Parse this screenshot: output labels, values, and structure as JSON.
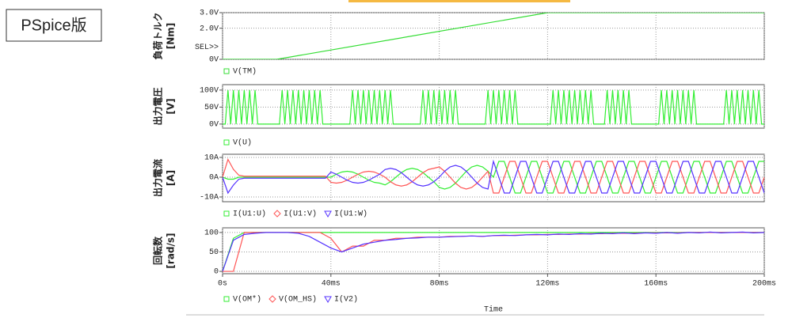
{
  "title": "PSpice版",
  "chart_data": [
    {
      "type": "line",
      "ylabel": "負荷トルク",
      "yunit": "[Nm]",
      "annotation": "SEL>>",
      "xlim": [
        0,
        200
      ],
      "ylim": [
        0,
        3
      ],
      "yticks": [
        {
          "value": 0,
          "label": "0V"
        },
        {
          "value": 2,
          "label": "2.0V"
        },
        {
          "value": 3,
          "label": "3.0V"
        }
      ],
      "x": [
        0,
        20,
        120,
        200
      ],
      "series": [
        {
          "name": "V(TM)",
          "color": "#33dd33",
          "marker": "square",
          "values": [
            0,
            0,
            3,
            3
          ]
        }
      ]
    },
    {
      "type": "line",
      "ylabel": "出力電圧",
      "yunit": "[V]",
      "xlim": [
        0,
        200
      ],
      "ylim": [
        -12,
        116
      ],
      "yticks": [
        {
          "value": 0,
          "label": "0V"
        },
        {
          "value": 50,
          "label": "50V"
        },
        {
          "value": 100,
          "label": "100V"
        }
      ],
      "x": [
        0,
        1,
        2,
        3,
        4,
        5,
        6,
        7,
        8,
        9,
        10,
        11,
        12,
        13,
        14,
        15,
        16,
        17,
        18,
        19,
        20,
        21,
        22,
        23,
        24,
        25,
        26,
        27,
        28,
        29,
        30,
        31,
        32,
        33,
        34,
        35,
        36,
        37,
        38,
        39,
        40,
        41,
        42,
        43,
        44,
        45,
        46,
        47,
        48,
        49,
        50,
        51,
        52,
        53,
        54,
        55,
        56,
        57,
        58,
        59,
        60,
        61,
        62,
        63,
        64,
        65,
        66,
        67,
        68,
        69,
        70,
        71,
        72,
        73,
        74,
        75,
        76,
        77,
        78,
        79,
        80,
        81,
        82,
        83,
        84,
        85,
        86,
        87,
        88,
        89,
        90,
        91,
        92,
        93,
        94,
        95,
        96,
        97,
        98,
        99,
        100,
        101,
        102,
        103,
        104,
        105,
        106,
        107,
        108,
        109,
        110,
        111,
        112,
        113,
        114,
        115,
        116,
        117,
        118,
        119,
        120,
        121,
        122,
        123,
        124,
        125,
        126,
        127,
        128,
        129,
        130,
        131,
        132,
        133,
        134,
        135,
        136,
        137,
        138,
        139,
        140,
        141,
        142,
        143,
        144,
        145,
        146,
        147,
        148,
        149,
        150,
        151,
        152,
        153,
        154,
        155,
        156,
        157,
        158,
        159,
        160,
        161,
        162,
        163,
        164,
        165,
        166,
        167,
        168,
        169,
        170,
        171,
        172,
        173,
        174,
        175,
        176,
        177,
        178,
        179,
        180,
        181,
        182,
        183,
        184,
        185,
        186,
        187,
        188,
        189,
        190,
        191,
        192,
        193,
        194,
        195,
        196,
        197,
        198,
        199,
        200
      ],
      "series": [
        {
          "name": "V(U)",
          "color": "#33ee33",
          "marker": "square",
          "values": [
            0,
            0,
            100,
            0,
            100,
            0,
            100,
            0,
            100,
            0,
            100,
            0,
            100,
            0,
            0,
            0,
            0,
            0,
            0,
            0,
            0,
            0,
            100,
            0,
            100,
            0,
            100,
            0,
            100,
            0,
            100,
            0,
            100,
            0,
            100,
            0,
            100,
            0,
            0,
            0,
            0,
            0,
            0,
            0,
            0,
            0,
            0,
            0,
            100,
            0,
            100,
            0,
            100,
            0,
            100,
            0,
            100,
            0,
            100,
            0,
            100,
            0,
            100,
            0,
            0,
            0,
            0,
            0,
            0,
            0,
            0,
            0,
            0,
            0,
            100,
            0,
            100,
            0,
            100,
            0,
            100,
            0,
            100,
            0,
            100,
            0,
            100,
            0,
            0,
            0,
            0,
            0,
            0,
            0,
            0,
            0,
            0,
            0,
            100,
            0,
            100,
            0,
            100,
            0,
            100,
            0,
            100,
            0,
            100,
            0,
            0,
            0,
            0,
            0,
            0,
            0,
            0,
            0,
            0,
            0,
            0,
            0,
            100,
            0,
            100,
            0,
            100,
            0,
            100,
            0,
            100,
            0,
            100,
            0,
            100,
            0,
            100,
            0,
            0,
            0,
            0,
            0,
            100,
            0,
            100,
            0,
            100,
            0,
            100,
            0,
            100,
            0,
            0,
            0,
            0,
            0,
            0,
            0,
            0,
            0,
            0,
            0,
            100,
            0,
            100,
            0,
            100,
            0,
            100,
            0,
            100,
            0,
            100,
            0,
            100,
            0,
            0,
            0,
            0,
            0,
            0,
            0,
            0,
            0,
            0,
            0,
            100,
            0,
            100,
            0,
            100,
            0,
            100,
            0,
            100,
            0,
            100,
            0,
            100,
            0,
            0
          ]
        }
      ]
    },
    {
      "type": "line",
      "ylabel": "出力電流",
      "yunit": "[A]",
      "xlim": [
        0,
        200
      ],
      "ylim": [
        -12.4,
        11.6
      ],
      "yticks": [
        {
          "value": -10,
          "label": "-10A"
        },
        {
          "value": 0,
          "label": "0A"
        },
        {
          "value": 10,
          "label": "10A"
        }
      ],
      "x": [
        0,
        2,
        4,
        6,
        8,
        10,
        12,
        14,
        16,
        18,
        20,
        22,
        24,
        26,
        28,
        30,
        32,
        34,
        36,
        38,
        40,
        42,
        44,
        46,
        48,
        50,
        52,
        54,
        56,
        58,
        60,
        62,
        64,
        66,
        68,
        70,
        72,
        74,
        76,
        78,
        80,
        82,
        84,
        86,
        88,
        90,
        92,
        94,
        96,
        98,
        100,
        102,
        104,
        106,
        108,
        110,
        112,
        114,
        116,
        118,
        120,
        122,
        124,
        126,
        128,
        130,
        132,
        134,
        136,
        138,
        140,
        142,
        144,
        146,
        148,
        150,
        152,
        154,
        156,
        158,
        160,
        162,
        164,
        166,
        168,
        170,
        172,
        174,
        176,
        178,
        180,
        182,
        184,
        186,
        188,
        190,
        192,
        194,
        196,
        198,
        200
      ],
      "series": [
        {
          "name": "I(U1:U)",
          "color": "#33ee33",
          "marker": "square",
          "values": [
            0,
            -1,
            -1,
            0,
            0,
            0,
            0,
            0,
            0,
            0,
            0,
            0,
            0,
            0,
            0,
            0,
            0,
            0,
            0,
            0,
            0,
            1.5,
            2.6,
            3,
            2.6,
            1.5,
            0,
            -1.5,
            -2.6,
            -3,
            -3.9,
            -2.3,
            0,
            2.3,
            3.9,
            4.5,
            3.9,
            2.3,
            0,
            -2.3,
            -5.2,
            -6,
            -5.2,
            -3,
            0,
            3,
            5.2,
            6,
            5.2,
            3,
            0,
            8,
            8,
            0,
            -8,
            -8,
            0,
            8,
            8,
            0,
            -8,
            -8,
            0,
            8,
            8,
            0,
            -8,
            -8,
            0,
            8,
            8,
            0,
            -8,
            -8,
            0,
            8,
            8,
            0,
            -8,
            -8,
            0,
            8,
            8,
            0,
            -8,
            -8,
            0,
            8,
            8,
            0,
            -8,
            -8,
            0,
            8,
            8,
            0,
            -8,
            -8,
            0,
            8,
            8
          ]
        },
        {
          "name": "I(U1:V)",
          "color": "#ff5555",
          "marker": "diamond",
          "values": [
            0,
            9,
            4,
            1,
            0.5,
            0.5,
            0.5,
            0.5,
            0.5,
            0.5,
            0.5,
            0.5,
            0.5,
            0.5,
            0.5,
            0.5,
            0.5,
            0.5,
            0.5,
            0.5,
            -2.6,
            -3,
            -2.6,
            -1.5,
            0,
            1.5,
            2.6,
            3,
            2.6,
            1.5,
            0,
            -2.3,
            -3.9,
            -4.5,
            -3.9,
            -2.3,
            0,
            2.3,
            3.9,
            4.5,
            5.2,
            3,
            0,
            -3,
            -5.2,
            -6,
            -5.2,
            -3,
            0,
            3,
            -8,
            -8,
            0,
            8,
            8,
            0,
            -8,
            -8,
            0,
            8,
            8,
            0,
            -8,
            -8,
            0,
            8,
            8,
            0,
            -8,
            -8,
            0,
            8,
            8,
            0,
            -8,
            -8,
            0,
            8,
            8,
            0,
            -8,
            -8,
            0,
            8,
            8,
            0,
            -8,
            -8,
            0,
            8,
            8,
            0,
            -8,
            -8,
            0,
            8,
            8,
            0,
            -8,
            -8,
            0
          ]
        },
        {
          "name": "I(U1:W)",
          "color": "#5533ff",
          "marker": "triangle",
          "values": [
            0,
            -8,
            -4,
            -1,
            -0.5,
            -0.5,
            -0.5,
            -0.5,
            -0.5,
            -0.5,
            -0.5,
            -0.5,
            -0.5,
            -0.5,
            -0.5,
            -0.5,
            -0.5,
            -0.5,
            -0.5,
            -0.5,
            2.6,
            1.5,
            0,
            -1.5,
            -2.6,
            -3,
            -2.6,
            -1.5,
            0,
            1.5,
            3.9,
            4.5,
            3.9,
            2.3,
            0,
            -2.3,
            -3.9,
            -4.5,
            -3.9,
            -2.3,
            0,
            3,
            5.2,
            6,
            5.2,
            3,
            0,
            -3,
            -5.2,
            -6,
            8,
            0,
            -8,
            -8,
            0,
            8,
            8,
            0,
            -8,
            -8,
            0,
            8,
            8,
            0,
            -8,
            -8,
            0,
            8,
            8,
            0,
            -8,
            -8,
            0,
            8,
            8,
            0,
            -8,
            -8,
            0,
            8,
            8,
            0,
            -8,
            -8,
            0,
            8,
            8,
            0,
            -8,
            -8,
            0,
            8,
            8,
            0,
            -8,
            -8,
            0,
            8,
            8,
            0,
            -8
          ]
        }
      ]
    },
    {
      "type": "line",
      "ylabel": "回転数",
      "yunit": "[rad/s]",
      "xlabel": "Time",
      "xlim": [
        0,
        200
      ],
      "ylim": [
        -6,
        112
      ],
      "yticks": [
        0,
        50,
        100
      ],
      "xticks": [
        {
          "value": 0,
          "label": "0s"
        },
        {
          "value": 40,
          "label": "40ms"
        },
        {
          "value": 80,
          "label": "80ms"
        },
        {
          "value": 120,
          "label": "120ms"
        },
        {
          "value": 160,
          "label": "160ms"
        },
        {
          "value": 200,
          "label": "200ms"
        }
      ],
      "x": [
        0,
        4,
        8,
        12,
        16,
        20,
        24,
        28,
        32,
        36,
        40,
        44,
        48,
        52,
        56,
        60,
        64,
        68,
        72,
        76,
        80,
        84,
        88,
        92,
        96,
        100,
        104,
        108,
        112,
        116,
        120,
        124,
        128,
        132,
        136,
        140,
        144,
        148,
        152,
        156,
        160,
        164,
        168,
        172,
        176,
        180,
        184,
        188,
        192,
        196,
        200
      ],
      "series": [
        {
          "name": "V(OM*)",
          "color": "#33ee33",
          "marker": "square",
          "values": [
            0,
            85,
            100,
            100,
            100,
            100,
            100,
            100,
            100,
            100,
            100,
            100,
            100,
            100,
            100,
            100,
            100,
            100,
            100,
            100,
            100,
            100,
            100,
            100,
            100,
            100,
            100,
            100,
            100,
            100,
            100,
            100,
            100,
            100,
            100,
            100,
            100,
            100,
            100,
            100,
            100,
            100,
            100,
            100,
            100,
            100,
            100,
            100,
            100,
            100,
            100
          ]
        },
        {
          "name": "V(OM_HS)",
          "color": "#ff5555",
          "marker": "diamond",
          "values": [
            0,
            0,
            100,
            100,
            100,
            100,
            100,
            100,
            100,
            100,
            85,
            50,
            65,
            65,
            80,
            80,
            85,
            85,
            88,
            88,
            88,
            90,
            90,
            91,
            90,
            92,
            92,
            93,
            94,
            94,
            95,
            95,
            96,
            96,
            97,
            97,
            98,
            98,
            98,
            99,
            99,
            99,
            99,
            100,
            100,
            100,
            100,
            100,
            100,
            100,
            100
          ]
        },
        {
          "name": "I(V2)",
          "color": "#5533ff",
          "marker": "triangle",
          "values": [
            0,
            80,
            95,
            98,
            100,
            100,
            100,
            98,
            90,
            75,
            60,
            50,
            60,
            70,
            75,
            80,
            82,
            85,
            86,
            88,
            88,
            89,
            90,
            91,
            90,
            92,
            93,
            92,
            94,
            95,
            94,
            96,
            95,
            97,
            96,
            98,
            97,
            99,
            97,
            99,
            98,
            100,
            98,
            100,
            99,
            101,
            99,
            100,
            101,
            99,
            100
          ]
        }
      ]
    }
  ]
}
